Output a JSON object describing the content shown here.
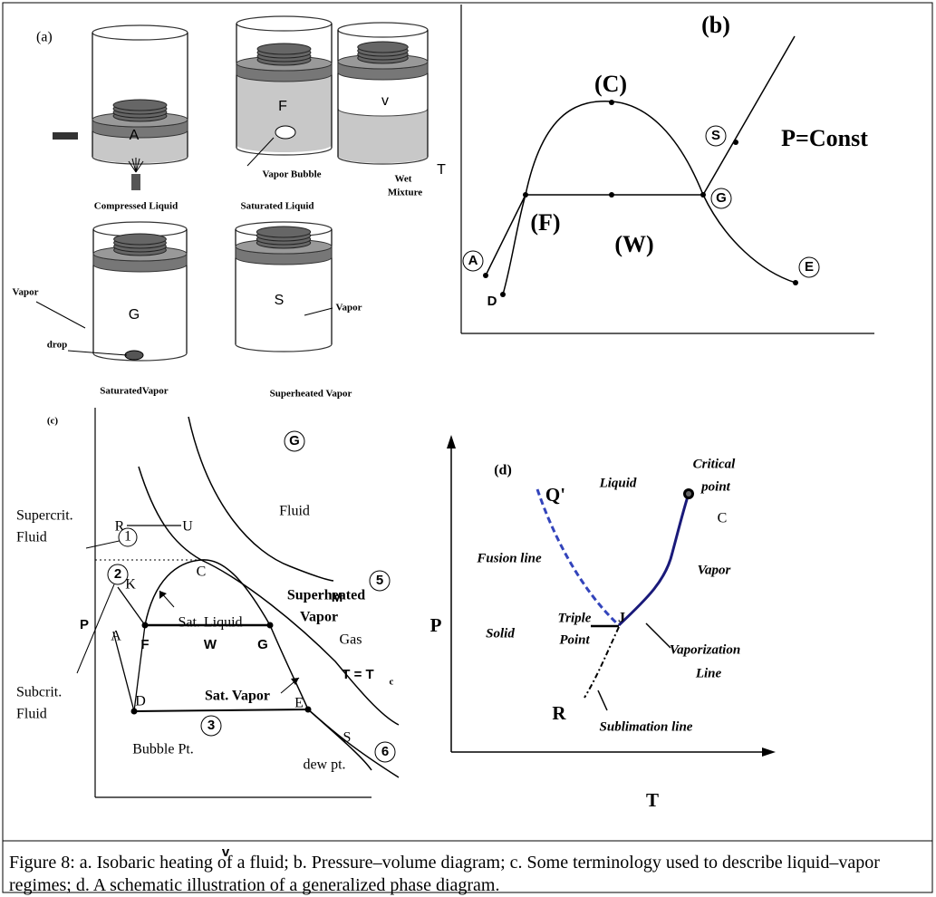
{
  "panel_a": {
    "tag": "(a)",
    "labels": [
      "A",
      "F",
      "v",
      "T",
      "Compressed Liquid",
      "Saturated Liquid",
      "Vapor Bubble",
      "Wet",
      "Mixture",
      "Vapor",
      "G",
      "drop",
      "SaturatedVapor",
      "S",
      "Vapor",
      "Superheated Vapor"
    ]
  },
  "panel_b": {
    "tag": "(b)",
    "labels": [
      "(C)",
      "(F)",
      "(W)",
      "A",
      "D",
      "S",
      "G",
      "E",
      "P=Const"
    ]
  },
  "panel_c": {
    "tag": "(c)",
    "labels": [
      "G",
      "Supercrit.",
      "Fluid",
      "R",
      "U",
      "1",
      "Fluid",
      "2",
      "K",
      "C",
      "M",
      "5",
      "Superheated",
      "Vapor",
      "P",
      "Sat. Liquid",
      "A",
      "F",
      "W",
      "G",
      "Gas",
      "T = T",
      "c",
      "Subcrit.",
      "Fluid",
      "D",
      "Sat. Vapor",
      "E",
      "S",
      "6",
      "3",
      "Bubble Pt.",
      "dew pt.",
      "v"
    ]
  },
  "panel_d": {
    "tag": "(d)",
    "labels": [
      "Q'",
      "Liquid",
      "Critical",
      "point",
      "C",
      "Fusion line",
      "Vapor",
      "P",
      "Triple",
      "Point",
      "J",
      "Solid",
      "Vaporization",
      "Line",
      "R",
      "Sublimation line",
      "T"
    ]
  },
  "caption": "Figure 8: a. Isobaric heating of a fluid; b. Pressure–volume diagram; c. Some terminology used to describe liquid–vapor regimes; d. A schematic illustration of a generalized phase diagram."
}
